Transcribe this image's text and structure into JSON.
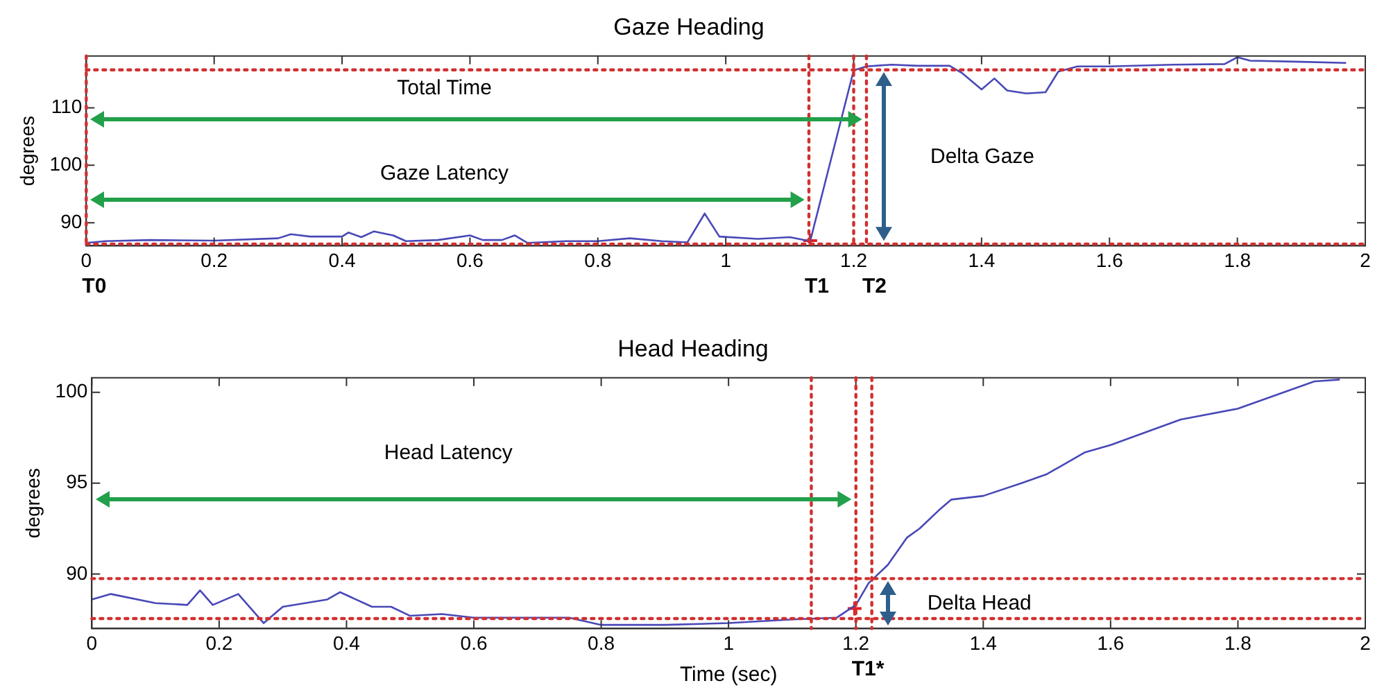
{
  "chart_data": [
    {
      "type": "line",
      "title": "Gaze Heading",
      "ylabel": "degrees",
      "xlim": [
        0,
        2
      ],
      "xticks": [
        0,
        0.2,
        0.4,
        0.6,
        0.8,
        1,
        1.2,
        1.4,
        1.6,
        1.8,
        2
      ],
      "ylim": [
        86,
        119
      ],
      "yticks": [
        90,
        100,
        110
      ],
      "series": [
        {
          "color": "#4848b8",
          "x": [
            0,
            0.03,
            0.1,
            0.2,
            0.3,
            0.32,
            0.35,
            0.4,
            0.41,
            0.43,
            0.45,
            0.48,
            0.5,
            0.55,
            0.6,
            0.62,
            0.65,
            0.67,
            0.69,
            0.75,
            0.8,
            0.85,
            0.9,
            0.94,
            0.967,
            0.99,
            1.05,
            1.1,
            1.132,
            1.2,
            1.22,
            1.26,
            1.3,
            1.35,
            1.37,
            1.4,
            1.42,
            1.44,
            1.47,
            1.5,
            1.52,
            1.55,
            1.6,
            1.7,
            1.78,
            1.8,
            1.82,
            1.9,
            1.97
          ],
          "values": [
            86.5,
            86.8,
            87,
            86.9,
            87.3,
            88,
            87.6,
            87.6,
            88.3,
            87.5,
            88.5,
            87.8,
            86.8,
            87,
            87.8,
            87,
            87,
            87.8,
            86.5,
            86.8,
            86.8,
            87.3,
            86.8,
            86.6,
            91.6,
            87.6,
            87.2,
            87.5,
            86.8,
            116.5,
            117.2,
            117.5,
            117.3,
            117.3,
            116,
            113.2,
            115.1,
            113,
            112.5,
            112.7,
            116.3,
            117.2,
            117.2,
            117.5,
            117.6,
            118.8,
            118.2,
            118,
            117.8
          ]
        },
        {
          "type": "scatter",
          "marker": "cross",
          "color": "#e02020",
          "x": [
            1.132
          ],
          "values": [
            86.9
          ]
        }
      ],
      "ref_lines": [
        {
          "axis": "x",
          "value": 0,
          "label": "T0",
          "color": "#d03030",
          "line_style": "dotted"
        },
        {
          "axis": "x",
          "value": 1.13,
          "label": "T1",
          "color": "#d03030",
          "line_style": "dotted"
        },
        {
          "axis": "x",
          "value": 1.2,
          "color": "#d03030",
          "line_style": "dotted"
        },
        {
          "axis": "x",
          "value": 1.22,
          "label": "T2",
          "color": "#d03030",
          "line_style": "dotted"
        },
        {
          "axis": "y",
          "value": 116.6,
          "color": "#d03030",
          "line_style": "dotted"
        },
        {
          "axis": "y",
          "value": 86.3,
          "color": "#d03030",
          "line_style": "dotted"
        }
      ],
      "annotations": [
        "Total Time",
        "Gaze Latency",
        "Delta Gaze"
      ]
    },
    {
      "type": "line",
      "title": "Head Heading",
      "xlabel": "Time (sec)",
      "ylabel": "degrees",
      "xlim": [
        0,
        2
      ],
      "xticks": [
        0,
        0.2,
        0.4,
        0.6,
        0.8,
        1,
        1.2,
        1.4,
        1.6,
        1.8,
        2
      ],
      "ylim": [
        87,
        100.8
      ],
      "yticks": [
        90,
        95,
        100
      ],
      "series": [
        {
          "color": "#4848b8",
          "x": [
            0,
            0.03,
            0.1,
            0.15,
            0.17,
            0.19,
            0.23,
            0.27,
            0.3,
            0.37,
            0.39,
            0.44,
            0.47,
            0.5,
            0.55,
            0.6,
            0.75,
            0.8,
            0.9,
            1,
            1.1,
            1.17,
            1.2,
            1.22,
            1.25,
            1.28,
            1.3,
            1.33,
            1.35,
            1.4,
            1.46,
            1.5,
            1.56,
            1.6,
            1.71,
            1.8,
            1.92,
            1.96
          ],
          "values": [
            88.6,
            88.9,
            88.4,
            88.3,
            89.1,
            88.3,
            88.9,
            87.3,
            88.2,
            88.6,
            89,
            88.2,
            88.2,
            87.7,
            87.8,
            87.6,
            87.6,
            87.2,
            87.2,
            87.3,
            87.5,
            87.6,
            88.3,
            89.5,
            90.5,
            92,
            92.5,
            93.5,
            94.1,
            94.3,
            95,
            95.5,
            96.7,
            97.1,
            98.5,
            99.1,
            100.6,
            100.7
          ]
        },
        {
          "type": "scatter",
          "marker": "cross",
          "color": "#e02020",
          "x": [
            1.198
          ],
          "values": [
            88.1
          ]
        }
      ],
      "ref_lines": [
        {
          "axis": "x",
          "value": 1.13,
          "color": "#d03030",
          "line_style": "dotted"
        },
        {
          "axis": "x",
          "value": 1.2,
          "label": "T1*",
          "color": "#d03030",
          "line_style": "dotted"
        },
        {
          "axis": "x",
          "value": 1.225,
          "color": "#d03030",
          "line_style": "dotted"
        },
        {
          "axis": "y",
          "value": 89.75,
          "color": "#d03030",
          "line_style": "dotted"
        },
        {
          "axis": "y",
          "value": 87.55,
          "color": "#d03030",
          "line_style": "dotted"
        }
      ],
      "annotations": [
        "Head Latency",
        "Delta Head"
      ]
    }
  ]
}
